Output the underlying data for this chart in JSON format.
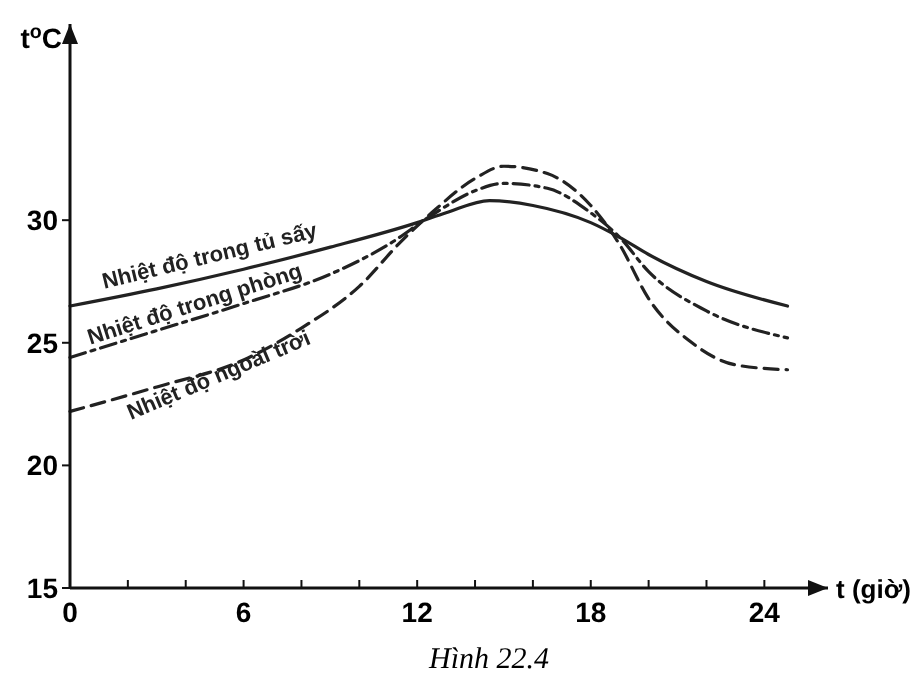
{
  "chart_data": {
    "type": "line",
    "ylabel": "t$^{o}$C",
    "xlabel": "t (giờ)",
    "annotations": [
      "Hình 22.4"
    ],
    "xlim": [
      0,
      26.2
    ],
    "ylim": [
      15,
      38
    ],
    "xticks": [
      0,
      {
        "value": 2,
        "label": null
      },
      {
        "value": 4,
        "label": null
      },
      6,
      {
        "value": 8,
        "label": null
      },
      {
        "value": 10,
        "label": null
      },
      12,
      {
        "value": 14,
        "label": null
      },
      {
        "value": 16,
        "label": null
      },
      18,
      {
        "value": 20,
        "label": null
      },
      {
        "value": 22,
        "label": null
      },
      24
    ],
    "yticks": [
      15,
      20,
      25,
      30
    ],
    "grid": false,
    "marker": "none",
    "series": [
      {
        "name": "Nhiệt độ trong tủ sấy",
        "color": "#222222",
        "line_style": "solid",
        "x": [
          0,
          3,
          6,
          9,
          12,
          13,
          14.5,
          16,
          18,
          19,
          20,
          22,
          24.8
        ],
        "values": [
          26.5,
          27.2,
          28,
          28.9,
          29.9,
          30.3,
          30.8,
          30.6,
          29.9,
          29.3,
          28.6,
          27.5,
          26.5
        ]
      },
      {
        "name": "Nhiệt độ trong phòng",
        "color": "#222222",
        "line_style": "dashdot",
        "x": [
          0,
          3,
          6,
          9,
          11,
          12.5,
          14,
          15,
          16.5,
          18,
          19,
          20,
          22,
          24.8
        ],
        "values": [
          24.4,
          25.5,
          26.6,
          27.8,
          29,
          30.2,
          31.2,
          31.5,
          31.3,
          30.3,
          29.3,
          27.9,
          26.3,
          25.2
        ]
      },
      {
        "name": "Nhiệt độ ngoài trời",
        "color": "#222222",
        "line_style": "dashed",
        "x": [
          0,
          3,
          6,
          8,
          10,
          11.5,
          12.5,
          14,
          15,
          16.5,
          18,
          19,
          20,
          21.5,
          23,
          24.8
        ],
        "values": [
          22.2,
          23.2,
          24.3,
          25.6,
          27.3,
          29.2,
          30.3,
          31.7,
          32.2,
          31.9,
          30.6,
          29,
          26.8,
          25,
          24.1,
          23.9
        ]
      }
    ]
  }
}
